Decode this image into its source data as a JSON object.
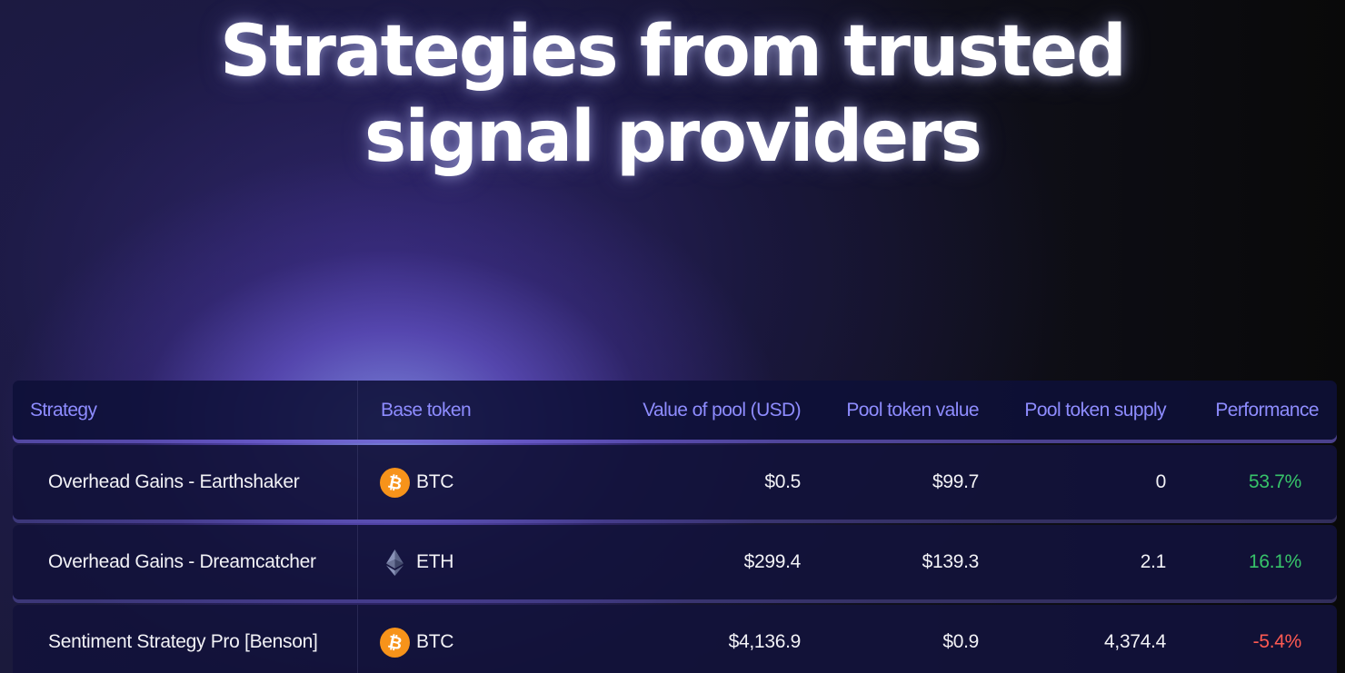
{
  "page": {
    "headline": "Strategies from trusted signal providers"
  },
  "table": {
    "headers": {
      "strategy": "Strategy",
      "base_token": "Base token",
      "value_of_pool": "Value of pool (USD)",
      "pool_token_value": "Pool token value",
      "pool_token_supply": "Pool token supply",
      "performance": "Performance"
    },
    "rows": [
      {
        "strategy": "Overhead Gains - Earthshaker",
        "base_token": "BTC",
        "token_icon": "btc-icon",
        "value_of_pool": "$0.5",
        "pool_token_value": "$99.7",
        "pool_token_supply": "0",
        "performance": "53.7%",
        "performance_trend": "positive"
      },
      {
        "strategy": "Overhead Gains - Dreamcatcher",
        "base_token": "ETH",
        "token_icon": "eth-icon",
        "value_of_pool": "$299.4",
        "pool_token_value": "$139.3",
        "pool_token_supply": "2.1",
        "performance": "16.1%",
        "performance_trend": "positive"
      },
      {
        "strategy": "Sentiment Strategy Pro [Benson]",
        "base_token": "BTC",
        "token_icon": "btc-icon",
        "value_of_pool": "$4,136.9",
        "pool_token_value": "$0.9",
        "pool_token_supply": "4,374.4",
        "performance": "-5.4%",
        "performance_trend": "negative"
      }
    ]
  },
  "colors": {
    "header_text": "#8e8cff",
    "positive": "#37c46a",
    "negative": "#ff5a52",
    "btc_orange": "#f7931a",
    "row_background": "#12123a"
  }
}
